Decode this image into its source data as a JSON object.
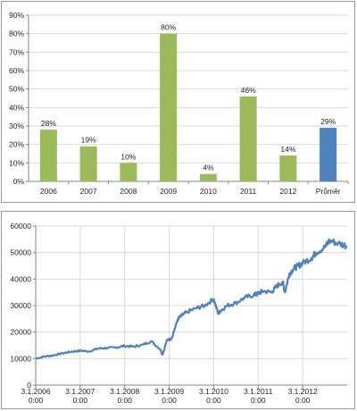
{
  "colors": {
    "bar_green": "#9bbb59",
    "bar_blue": "#4f81bd",
    "line_blue": "#4f81bd",
    "axis": "#868686",
    "grid": "#d9d9d9"
  },
  "chart_data": [
    {
      "type": "bar",
      "title": "",
      "xlabel": "",
      "ylabel": "",
      "categories": [
        "2006",
        "2007",
        "2008",
        "2009",
        "2010",
        "2011",
        "2012",
        "Průměr"
      ],
      "values": [
        28,
        19,
        10,
        80,
        4,
        46,
        14,
        29
      ],
      "data_labels": [
        "28%",
        "19%",
        "10%",
        "80%",
        "4%",
        "46%",
        "14%",
        "29%"
      ],
      "bar_colors": [
        "#9bbb59",
        "#9bbb59",
        "#9bbb59",
        "#9bbb59",
        "#9bbb59",
        "#9bbb59",
        "#9bbb59",
        "#4f81bd"
      ],
      "ylim": [
        0,
        90
      ],
      "yticks": [
        0,
        10,
        20,
        30,
        40,
        50,
        60,
        70,
        80,
        90
      ],
      "ytick_labels": [
        "0%",
        "10%",
        "20%",
        "30%",
        "40%",
        "50%",
        "60%",
        "70%",
        "80%",
        "90%"
      ],
      "grid": true,
      "legend": "none"
    },
    {
      "type": "line",
      "title": "",
      "xlabel": "",
      "ylabel": "",
      "xlim": [
        2006.0,
        2013.0
      ],
      "ylim": [
        0,
        60000
      ],
      "yticks": [
        0,
        10000,
        20000,
        30000,
        40000,
        50000,
        60000
      ],
      "ytick_labels": [
        "0",
        "10000",
        "20000",
        "30000",
        "40000",
        "50000",
        "60000"
      ],
      "xticks": [
        2006.0,
        2007.0,
        2008.0,
        2009.0,
        2010.0,
        2011.0,
        2012.0
      ],
      "xtick_labels": [
        {
          "date": "3.1.2006",
          "time": "0:00"
        },
        {
          "date": "3.1.2007",
          "time": "0:00"
        },
        {
          "date": "3.1.2008",
          "time": "0:00"
        },
        {
          "date": "3.1.2009",
          "time": "0:00"
        },
        {
          "date": "3.1.2010",
          "time": "0:00"
        },
        {
          "date": "3.1.2011",
          "time": "0:00"
        },
        {
          "date": "3.1.2012",
          "time": "0:00"
        }
      ],
      "grid": true,
      "legend": "none",
      "series": [
        {
          "x": [
            2006.0,
            2006.2,
            2006.4,
            2006.6,
            2006.8,
            2007.0,
            2007.2,
            2007.4,
            2007.6,
            2007.8,
            2008.0,
            2008.2,
            2008.4,
            2008.6,
            2008.8,
            2008.85,
            2008.95,
            2009.05,
            2009.2,
            2009.3,
            2009.4,
            2009.6,
            2009.8,
            2010.0,
            2010.1,
            2010.15,
            2010.3,
            2010.5,
            2010.7,
            2010.9,
            2011.0,
            2011.1,
            2011.3,
            2011.4,
            2011.55,
            2011.6,
            2011.7,
            2011.8,
            2011.9,
            2012.0,
            2012.2,
            2012.3,
            2012.5,
            2012.6,
            2012.8,
            2013.0
          ],
          "y": [
            10000,
            10800,
            11200,
            12000,
            12600,
            13000,
            12700,
            13800,
            14000,
            14200,
            14800,
            14500,
            15200,
            16500,
            13500,
            11500,
            17000,
            17500,
            25000,
            26500,
            27500,
            29000,
            30000,
            32500,
            27000,
            28000,
            30000,
            31000,
            33000,
            34000,
            34500,
            35500,
            35000,
            37000,
            39000,
            35000,
            42000,
            44000,
            45000,
            46000,
            48000,
            50000,
            52000,
            54500,
            53500,
            52500
          ]
        }
      ]
    }
  ]
}
